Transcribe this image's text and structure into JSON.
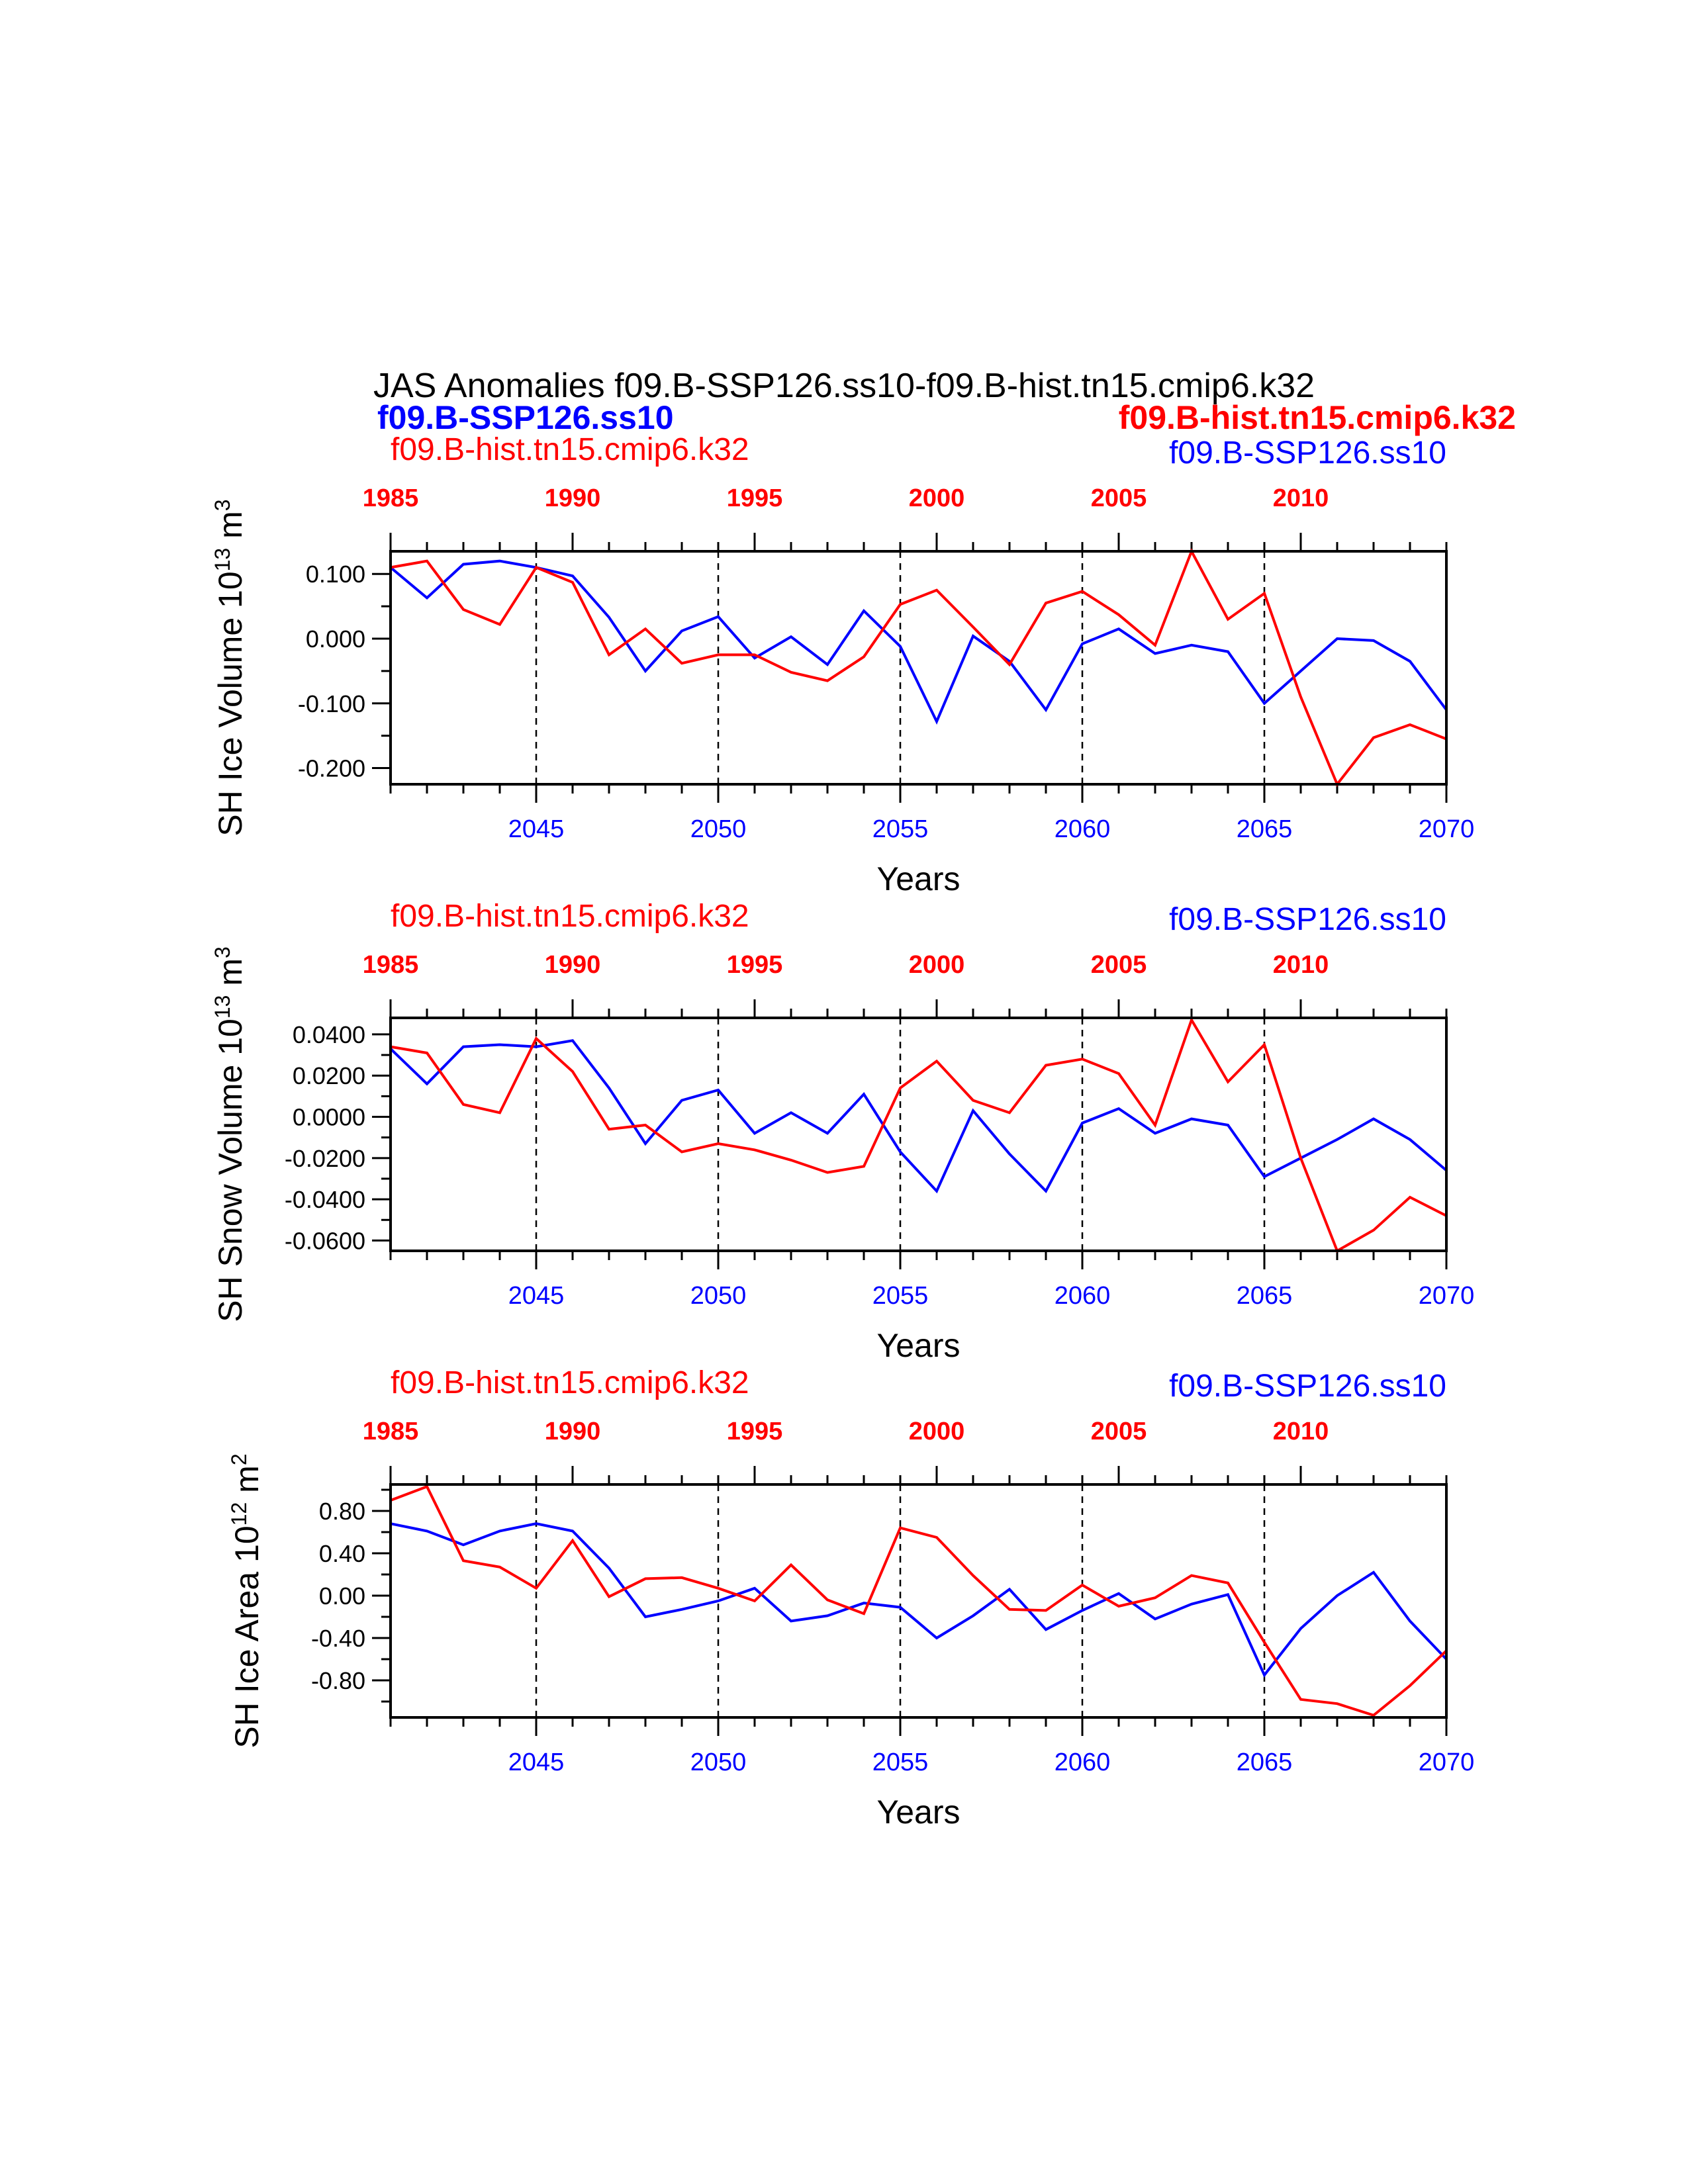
{
  "title": "JAS Anomalies f09.B-SSP126.ss10-f09.B-hist.tn15.cmip6.k32",
  "header_labels": {
    "left_bold": "f09.B-SSP126.ss10",
    "right_bold": "f09.B-hist.tn15.cmip6.k32"
  },
  "colors": {
    "ssp": "#0000ff",
    "hist": "#ff0000",
    "frame": "#000000"
  },
  "chart_data": [
    {
      "type": "line",
      "ylabel": "SH Ice Volume 10",
      "ylabel_exp": "13",
      "ylabel_unit": " m",
      "ylabel_unit_exp": "3",
      "xlabel": "Years",
      "left_label": "f09.B-hist.tn15.cmip6.k32",
      "right_label": "f09.B-SSP126.ss10",
      "ylim": [
        -0.225,
        0.135
      ],
      "yticks": [
        -0.2,
        -0.1,
        0.0,
        0.1
      ],
      "ytick_labels": [
        "-0.200",
        "-0.100",
        "0.000",
        "0.100"
      ],
      "xlim_bottom": [
        2041,
        2070
      ],
      "xticks_bottom": [
        2045,
        2050,
        2055,
        2060,
        2065,
        2070
      ],
      "xlim_top": [
        1985,
        2014
      ],
      "xticks_top": [
        1985,
        1990,
        1995,
        2000,
        2005,
        2010
      ],
      "dashed_at": [
        2045,
        2050,
        2055,
        2060,
        2065
      ],
      "series": [
        {
          "name": "f09.B-SSP126.ss10",
          "axis": "bottom",
          "color": "#0000ff",
          "x_start": 2041,
          "values": [
            0.11,
            0.063,
            0.115,
            0.12,
            0.11,
            0.097,
            0.033,
            -0.05,
            0.012,
            0.034,
            -0.03,
            0.003,
            -0.04,
            0.043,
            -0.012,
            -0.128,
            0.004,
            -0.035,
            -0.11,
            -0.008,
            0.015,
            -0.023,
            -0.01,
            -0.02,
            -0.1,
            -0.05,
            0.0,
            -0.003,
            -0.035,
            -0.11
          ]
        },
        {
          "name": "f09.B-hist.tn15.cmip6.k32",
          "axis": "top",
          "color": "#ff0000",
          "x_start": 1985,
          "values": [
            0.11,
            0.12,
            0.045,
            0.022,
            0.11,
            0.087,
            -0.025,
            0.015,
            -0.038,
            -0.025,
            -0.025,
            -0.052,
            -0.065,
            -0.028,
            0.053,
            0.075,
            0.018,
            -0.04,
            0.055,
            0.073,
            0.037,
            -0.01,
            0.135,
            0.03,
            0.07,
            -0.09,
            -0.225,
            -0.153,
            -0.133,
            -0.155
          ]
        }
      ]
    },
    {
      "type": "line",
      "ylabel": "SH Snow Volume 10",
      "ylabel_exp": "13",
      "ylabel_unit": " m",
      "ylabel_unit_exp": "3",
      "xlabel": "Years",
      "left_label": "f09.B-hist.tn15.cmip6.k32",
      "right_label": "f09.B-SSP126.ss10",
      "ylim": [
        -0.065,
        0.048
      ],
      "yticks": [
        -0.06,
        -0.04,
        -0.02,
        0.0,
        0.02,
        0.04
      ],
      "ytick_labels": [
        "-0.0600",
        "-0.0400",
        "-0.0200",
        "0.0000",
        "0.0200",
        "0.0400"
      ],
      "xlim_bottom": [
        2041,
        2070
      ],
      "xticks_bottom": [
        2045,
        2050,
        2055,
        2060,
        2065,
        2070
      ],
      "xlim_top": [
        1985,
        2014
      ],
      "xticks_top": [
        1985,
        1990,
        1995,
        2000,
        2005,
        2010
      ],
      "dashed_at": [
        2045,
        2050,
        2055,
        2060,
        2065
      ],
      "series": [
        {
          "name": "f09.B-SSP126.ss10",
          "axis": "bottom",
          "color": "#0000ff",
          "x_start": 2041,
          "values": [
            0.033,
            0.016,
            0.034,
            0.035,
            0.034,
            0.037,
            0.014,
            -0.013,
            0.008,
            0.013,
            -0.008,
            0.002,
            -0.008,
            0.011,
            -0.017,
            -0.036,
            0.003,
            -0.018,
            -0.036,
            -0.003,
            0.004,
            -0.008,
            -0.001,
            -0.004,
            -0.029,
            -0.02,
            -0.011,
            -0.001,
            -0.011,
            -0.026
          ]
        },
        {
          "name": "f09.B-hist.tn15.cmip6.k32",
          "axis": "top",
          "color": "#ff0000",
          "x_start": 1985,
          "values": [
            0.034,
            0.031,
            0.006,
            0.002,
            0.038,
            0.022,
            -0.006,
            -0.004,
            -0.017,
            -0.013,
            -0.016,
            -0.021,
            -0.027,
            -0.024,
            0.014,
            0.027,
            0.008,
            0.002,
            0.025,
            0.028,
            0.021,
            -0.004,
            0.047,
            0.017,
            0.035,
            -0.02,
            -0.065,
            -0.055,
            -0.039,
            -0.048
          ]
        }
      ]
    },
    {
      "type": "line",
      "ylabel": "SH Ice Area 10",
      "ylabel_exp": "12",
      "ylabel_unit": " m",
      "ylabel_unit_exp": "2",
      "xlabel": "Years",
      "left_label": "f09.B-hist.tn15.cmip6.k32",
      "right_label": "f09.B-SSP126.ss10",
      "ylim": [
        -1.15,
        1.05
      ],
      "yticks": [
        -0.8,
        -0.4,
        0.0,
        0.4,
        0.8
      ],
      "ytick_labels": [
        "-0.80",
        "-0.40",
        "0.00",
        "0.40",
        "0.80"
      ],
      "xlim_bottom": [
        2041,
        2070
      ],
      "xticks_bottom": [
        2045,
        2050,
        2055,
        2060,
        2065,
        2070
      ],
      "xlim_top": [
        1985,
        2014
      ],
      "xticks_top": [
        1985,
        1990,
        1995,
        2000,
        2005,
        2010
      ],
      "dashed_at": [
        2045,
        2050,
        2055,
        2060,
        2065
      ],
      "series": [
        {
          "name": "f09.B-SSP126.ss10",
          "axis": "bottom",
          "color": "#0000ff",
          "x_start": 2041,
          "values": [
            0.68,
            0.61,
            0.48,
            0.61,
            0.68,
            0.61,
            0.26,
            -0.2,
            -0.13,
            -0.05,
            0.07,
            -0.24,
            -0.19,
            -0.07,
            -0.11,
            -0.4,
            -0.19,
            0.06,
            -0.32,
            -0.14,
            0.02,
            -0.22,
            -0.08,
            0.01,
            -0.75,
            -0.31,
            0.0,
            0.22,
            -0.24,
            -0.6
          ]
        },
        {
          "name": "f09.B-hist.tn15.cmip6.k32",
          "axis": "top",
          "color": "#ff0000",
          "x_start": 1985,
          "values": [
            0.9,
            1.03,
            0.33,
            0.27,
            0.07,
            0.52,
            -0.01,
            0.16,
            0.17,
            0.07,
            -0.05,
            0.29,
            -0.04,
            -0.17,
            0.64,
            0.55,
            0.19,
            -0.13,
            -0.14,
            0.1,
            -0.1,
            -0.02,
            0.19,
            0.12,
            -0.44,
            -0.98,
            -1.02,
            -1.13,
            -0.85,
            -0.52
          ]
        }
      ]
    }
  ]
}
